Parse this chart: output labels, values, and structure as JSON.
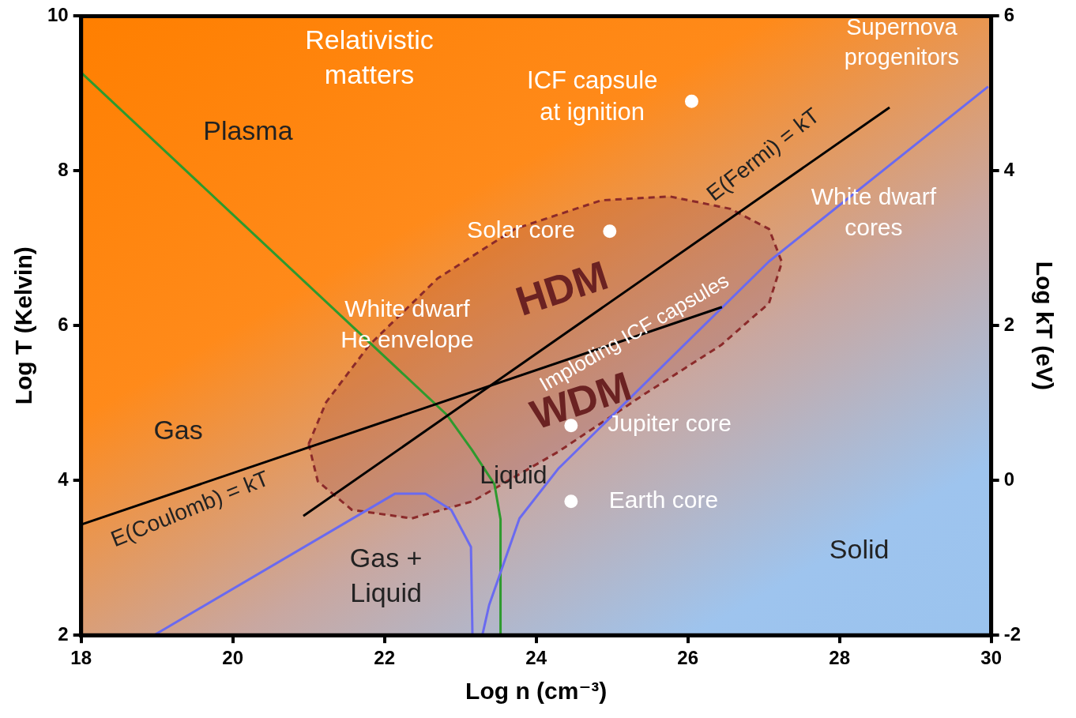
{
  "chart_data": {
    "type": "line",
    "xlabel": "Log n (cm⁻³)",
    "ylabel": "Log T (Kelvin)",
    "y2label": "Log kT (eV)",
    "xlim": [
      18,
      30
    ],
    "xticks": [
      18,
      20,
      22,
      24,
      26,
      28,
      30
    ],
    "ylim": [
      2,
      10
    ],
    "yticks": [
      2,
      4,
      6,
      8,
      10
    ],
    "y2lim": [
      -2,
      6
    ],
    "y2ticks": [
      -2,
      0,
      2,
      4,
      6
    ],
    "grid": false,
    "legend": false,
    "marker": "none",
    "series": [
      {
        "type": "area",
        "color": "#8b2a2a",
        "line_style": "dashed",
        "x": [
          21.0,
          21.23,
          21.8,
          22.7,
          23.72,
          24.86,
          25.76,
          26.56,
          27.07,
          27.24,
          27.07,
          26.44,
          25.42,
          24.29,
          23.16,
          22.36,
          21.57,
          21.12,
          21.0
        ],
        "values": [
          4.47,
          5.01,
          5.75,
          6.61,
          7.25,
          7.62,
          7.67,
          7.51,
          7.25,
          6.82,
          6.29,
          5.75,
          5.11,
          4.37,
          3.73,
          3.51,
          3.62,
          3.99,
          4.47
        ]
      },
      {
        "color": "#2e9a2e",
        "x": [
          18,
          22.82,
          23.15,
          23.45,
          23.53,
          23.53
        ],
        "values": [
          9.27,
          4.85,
          4.4,
          3.95,
          3.5,
          2
        ]
      },
      {
        "color": "#6a6af0",
        "x": [
          18.96,
          22.14,
          22.54,
          22.88,
          23.14,
          23.16
        ],
        "values": [
          2,
          3.83,
          3.83,
          3.62,
          3.14,
          2
        ]
      },
      {
        "color": "#6a6af0",
        "x": [
          23.29,
          23.38,
          23.78,
          24.29,
          27.07,
          29.96
        ],
        "values": [
          2,
          2.39,
          3.51,
          4.15,
          6.83,
          9.09
        ]
      },
      {
        "color": "#000000",
        "x": [
          18,
          26.45
        ],
        "values": [
          3.43,
          6.24
        ]
      },
      {
        "color": "#000000",
        "x": [
          20.93,
          28.66
        ],
        "values": [
          3.54,
          8.82
        ]
      },
      {
        "type": "scatter",
        "color": "#ffffff",
        "marker": "circle",
        "x": [
          26.05,
          24.97,
          24.46,
          24.46
        ],
        "values": [
          8.9,
          7.22,
          4.71,
          3.73
        ]
      }
    ],
    "annotations": [
      "Relativistic\nmatters",
      "Plasma",
      "ICF capsule\nat ignition",
      "Supernova\nprogenitors",
      "E(Fermi) = kT",
      "White dwarf\ncores",
      "Solar core",
      "HDM",
      "White dwarf\nHe envelope",
      "Imploding ICF capsules",
      "WDM",
      "Gas",
      "Jupiter core",
      "E(Coulomb) = kT",
      "Liquid",
      "Earth core",
      "Gas +\nLiquid",
      "Solid"
    ]
  }
}
